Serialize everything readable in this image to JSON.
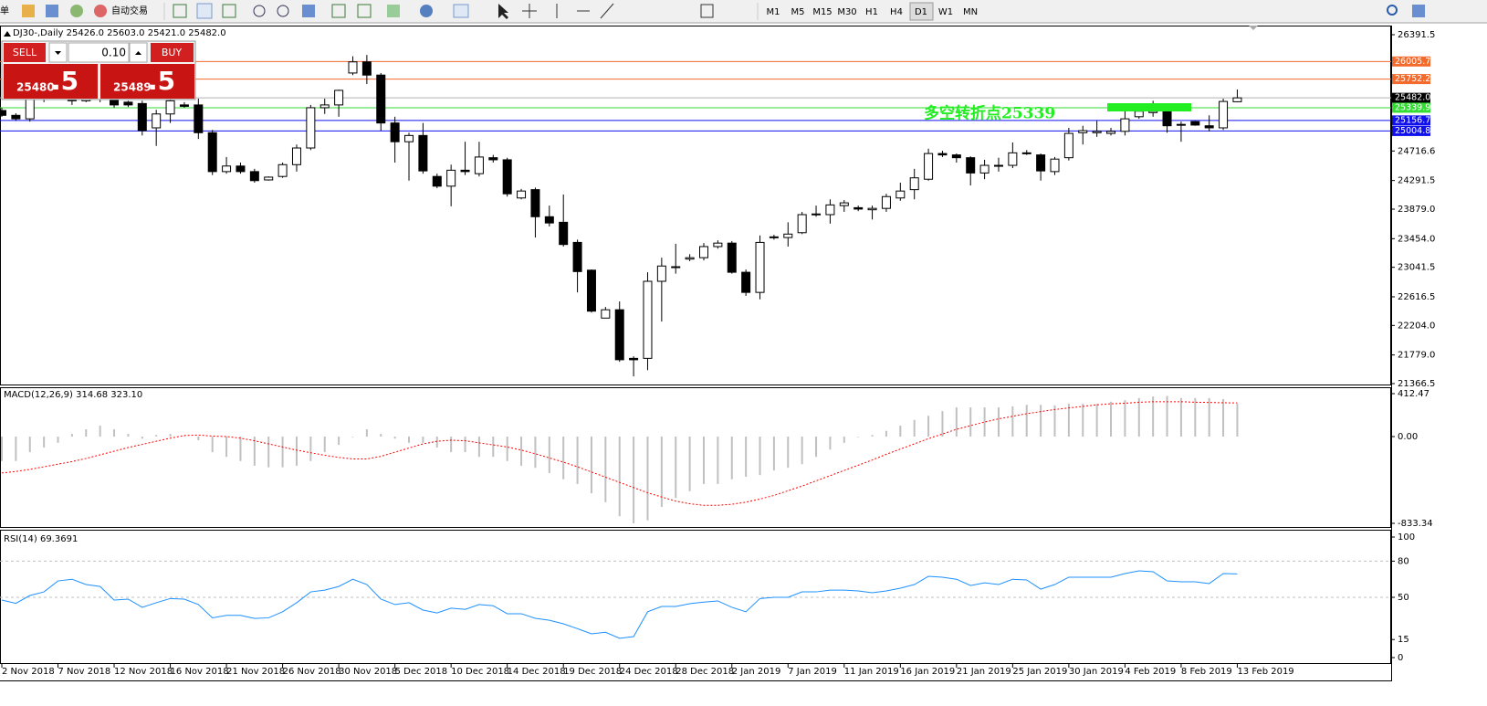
{
  "toolbar": {
    "left_label": "单",
    "auto_trading": "自动交易",
    "timeframes": [
      "M1",
      "M5",
      "M15",
      "M30",
      "H1",
      "H4",
      "D1",
      "W1",
      "MN"
    ],
    "active_timeframe": "D1"
  },
  "trade_panel": {
    "sell": "SELL",
    "buy": "BUY",
    "lots": "0.10",
    "bid_main": "25480",
    "bid_frac": ".5",
    "ask_main": "25489",
    "ask_frac": ".5"
  },
  "main_chart": {
    "header": "DJ30-,Daily 25426.0 25603.0 25421.0 25482.0",
    "ylim": [
      21366.5,
      26391.5
    ],
    "yticks": [
      26391.5,
      {
        "value": 24716.6,
        "label": "24716.6"
      },
      24291.5,
      {
        "value": 23879,
        "label": "23879.0"
      },
      {
        "value": 23454,
        "label": "23454.0"
      },
      23041.5,
      22616.5,
      {
        "value": 22204,
        "label": "22204.0"
      },
      {
        "value": 21779,
        "label": "21779.0"
      },
      21366.5
    ],
    "price_lines": [
      {
        "value": 26005.7,
        "color": "#f36a2c"
      },
      {
        "value": 25752.2,
        "color": "#f36a2c"
      },
      {
        "value": 25482,
        "label": "25482.0",
        "color": "#b0b0b0",
        "label_color": "#000000"
      },
      {
        "value": 25339.9,
        "color": "#33dd33"
      },
      {
        "value": 25156.7,
        "color": "#1010ee"
      },
      {
        "value": 25004.8,
        "color": "#1010ee"
      }
    ],
    "annotation": "多空转折点25339",
    "annotation_color": "#22ee22",
    "up_color": "#ffffff",
    "down_color": "#000000",
    "candles": [
      [
        25300,
        25340,
        25210,
        25230
      ],
      [
        25230,
        25260,
        25150,
        25180
      ],
      [
        25180,
        25580,
        25140,
        25470
      ],
      [
        25470,
        25730,
        25420,
        25640
      ],
      [
        25640,
        25710,
        25470,
        25550
      ],
      [
        25550,
        25600,
        25380,
        25440
      ],
      [
        25440,
        25640,
        25420,
        25580
      ],
      [
        25580,
        25630,
        25420,
        25470
      ],
      [
        25470,
        25510,
        25340,
        25380
      ],
      [
        25420,
        25440,
        25350,
        25380
      ],
      [
        25400,
        25440,
        24940,
        25010
      ],
      [
        25050,
        25310,
        24790,
        25250
      ],
      [
        25250,
        25580,
        25120,
        25440
      ],
      [
        25380,
        25420,
        25340,
        25360
      ],
      [
        25380,
        25470,
        24890,
        24980
      ],
      [
        24980,
        25020,
        24370,
        24420
      ],
      [
        24420,
        24630,
        24390,
        24500
      ],
      [
        24500,
        24550,
        24390,
        24420
      ],
      [
        24420,
        24460,
        24260,
        24290
      ],
      [
        24300,
        24350,
        24290,
        24340
      ],
      [
        24350,
        24550,
        24330,
        24520
      ],
      [
        24520,
        24810,
        24420,
        24760
      ],
      [
        24760,
        25380,
        24730,
        25340
      ],
      [
        25340,
        25470,
        25250,
        25380
      ],
      [
        25380,
        25600,
        25210,
        25590
      ],
      [
        25840,
        26080,
        25810,
        26000
      ],
      [
        26000,
        26100,
        25680,
        25810
      ],
      [
        25810,
        25840,
        25010,
        25120
      ],
      [
        25120,
        25210,
        24550,
        24850
      ],
      [
        24850,
        24980,
        24290,
        24940
      ],
      [
        24940,
        25120,
        24390,
        24430
      ],
      [
        24350,
        24390,
        24180,
        24210
      ],
      [
        24210,
        24520,
        23920,
        24440
      ],
      [
        24440,
        24850,
        24370,
        24420
      ],
      [
        24390,
        24850,
        24350,
        24630
      ],
      [
        24620,
        24660,
        24550,
        24590
      ],
      [
        24590,
        24620,
        24060,
        24100
      ],
      [
        24040,
        24170,
        24020,
        24140
      ],
      [
        24160,
        24190,
        23470,
        23770
      ],
      [
        23770,
        23930,
        23630,
        23680
      ],
      [
        23690,
        24090,
        23340,
        23370
      ],
      [
        23400,
        23440,
        22680,
        22980
      ],
      [
        23000,
        23010,
        22390,
        22410
      ],
      [
        22310,
        22470,
        22310,
        22430
      ],
      [
        22430,
        22550,
        21680,
        21710
      ],
      [
        21730,
        21760,
        21470,
        21710
      ],
      [
        21730,
        22970,
        21560,
        22840
      ],
      [
        22840,
        23180,
        22260,
        23060
      ],
      [
        23050,
        23380,
        22950,
        23050
      ],
      [
        23160,
        23230,
        23130,
        23180
      ],
      [
        23180,
        23390,
        23140,
        23340
      ],
      [
        23340,
        23430,
        23310,
        23390
      ],
      [
        23390,
        23420,
        22950,
        22970
      ],
      [
        22970,
        23010,
        22630,
        22680
      ],
      [
        22680,
        23500,
        22580,
        23400
      ],
      [
        23470,
        23510,
        23440,
        23480
      ],
      [
        23470,
        23690,
        23340,
        23520
      ],
      [
        23540,
        23840,
        23520,
        23800
      ],
      [
        23800,
        23930,
        23770,
        23810
      ],
      [
        23800,
        24020,
        23670,
        23940
      ],
      [
        23930,
        24010,
        23840,
        23970
      ],
      [
        23900,
        23930,
        23850,
        23880
      ],
      [
        23870,
        23930,
        23730,
        23890
      ],
      [
        23890,
        24100,
        23840,
        24060
      ],
      [
        24040,
        24260,
        24000,
        24140
      ],
      [
        24160,
        24460,
        24020,
        24330
      ],
      [
        24310,
        24750,
        24290,
        24680
      ],
      [
        24680,
        24720,
        24630,
        24660
      ],
      [
        24660,
        24680,
        24550,
        24620
      ],
      [
        24620,
        24640,
        24220,
        24400
      ],
      [
        24400,
        24590,
        24310,
        24510
      ],
      [
        24500,
        24620,
        24420,
        24510
      ],
      [
        24510,
        24840,
        24470,
        24690
      ],
      [
        24680,
        24730,
        24660,
        24690
      ],
      [
        24660,
        24680,
        24290,
        24430
      ],
      [
        24420,
        24630,
        24370,
        24600
      ],
      [
        24620,
        25050,
        24580,
        24970
      ],
      [
        24980,
        25080,
        24810,
        25010
      ],
      [
        24980,
        25150,
        24920,
        25000
      ],
      [
        24970,
        25050,
        24940,
        25000
      ],
      [
        25000,
        25340,
        24940,
        25180
      ],
      [
        25210,
        25380,
        25180,
        25290
      ],
      [
        25270,
        25440,
        25210,
        25290
      ],
      [
        25290,
        25380,
        24980,
        25080
      ],
      [
        25090,
        25140,
        24850,
        25100
      ],
      [
        25140,
        25150,
        25080,
        25090
      ],
      [
        25080,
        25230,
        25000,
        25050
      ],
      [
        25050,
        25470,
        25020,
        25430
      ],
      [
        25426,
        25603,
        25421,
        25482
      ]
    ]
  },
  "macd": {
    "label": "MACD(12,26,9) 314.68 323.10",
    "ylim": [
      -833.34,
      412.47
    ],
    "yticks": [
      412.47,
      {
        "value": 0,
        "label": "0.00"
      },
      -833.34
    ],
    "histogram_color": "#c0c0c0",
    "signal_color": "#ff0000",
    "histogram": [
      -235,
      -235,
      -150,
      -105,
      -60,
      25,
      70,
      105,
      70,
      25,
      -20,
      15,
      25,
      5,
      -35,
      -150,
      -195,
      -235,
      -280,
      -295,
      -295,
      -280,
      -235,
      -150,
      -80,
      -5,
      70,
      25,
      -20,
      -60,
      -60,
      -105,
      -150,
      -150,
      -195,
      -195,
      -235,
      -280,
      -300,
      -350,
      -410,
      -455,
      -545,
      -630,
      -765,
      -833,
      -805,
      -675,
      -590,
      -525,
      -455,
      -455,
      -410,
      -385,
      -370,
      -325,
      -300,
      -265,
      -195,
      -125,
      -60,
      -5,
      15,
      55,
      105,
      160,
      200,
      245,
      280,
      280,
      280,
      280,
      290,
      305,
      305,
      300,
      315,
      315,
      315,
      335,
      350,
      370,
      385,
      390,
      370,
      370,
      370,
      360,
      314.68
    ],
    "signal": [
      -350,
      -335,
      -315,
      -290,
      -265,
      -240,
      -210,
      -175,
      -140,
      -105,
      -75,
      -45,
      -15,
      10,
      15,
      5,
      0,
      -15,
      -40,
      -70,
      -100,
      -130,
      -155,
      -180,
      -200,
      -215,
      -215,
      -190,
      -150,
      -110,
      -70,
      -45,
      -35,
      -40,
      -60,
      -80,
      -100,
      -130,
      -165,
      -205,
      -245,
      -290,
      -340,
      -390,
      -440,
      -490,
      -540,
      -580,
      -620,
      -645,
      -660,
      -660,
      -650,
      -630,
      -600,
      -565,
      -520,
      -475,
      -425,
      -375,
      -325,
      -275,
      -225,
      -170,
      -120,
      -70,
      -20,
      25,
      70,
      105,
      140,
      170,
      195,
      220,
      240,
      260,
      275,
      290,
      305,
      315,
      320,
      330,
      335,
      335,
      335,
      330,
      328,
      325,
      323.1
    ]
  },
  "rsi": {
    "label": "RSI(14) 69.3691",
    "ylim": [
      0,
      100
    ],
    "yticks": [
      100,
      80,
      50,
      15,
      0
    ],
    "color": "#1e90ff",
    "values": [
      47.7,
      45,
      51.5,
      54.5,
      63.6,
      65,
      60.6,
      59,
      47.7,
      48.5,
      41.7,
      45.5,
      49,
      48.5,
      44,
      33,
      35,
      35,
      32.5,
      33,
      38,
      45.5,
      54.5,
      56,
      59,
      65,
      60.6,
      48.5,
      44,
      45.5,
      39.4,
      37,
      41,
      40,
      44,
      43,
      36.4,
      36.4,
      32.6,
      31,
      28,
      24,
      19.7,
      21,
      16,
      17.4,
      38,
      42.4,
      42.4,
      44.7,
      46,
      47,
      41.7,
      38,
      49,
      50,
      50,
      54.5,
      54.5,
      56,
      56,
      55.3,
      53.8,
      55.3,
      57.6,
      60.6,
      67.4,
      66.7,
      65,
      59.8,
      62,
      60.6,
      65,
      64.4,
      56.8,
      60.6,
      66.7,
      66.7,
      66.7,
      66.7,
      69.7,
      72,
      71.2,
      63.6,
      62.9,
      62.9,
      61.4,
      69.7,
      69.3691
    ]
  },
  "x_axis": {
    "labels": [
      "2 Nov 2018",
      "7 Nov 2018",
      "12 Nov 2018",
      "16 Nov 2018",
      "21 Nov 2018",
      "26 Nov 2018",
      "30 Nov 2018",
      "5 Dec 2018",
      "10 Dec 2018",
      "14 Dec 2018",
      "19 Dec 2018",
      "24 Dec 2018",
      "28 Dec 2018",
      "2 Jan 2019",
      "7 Jan 2019",
      "11 Jan 2019",
      "16 Jan 2019",
      "21 Jan 2019",
      "25 Jan 2019",
      "30 Jan 2019",
      "4 Feb 2019",
      "8 Feb 2019",
      "13 Feb 2019"
    ]
  }
}
